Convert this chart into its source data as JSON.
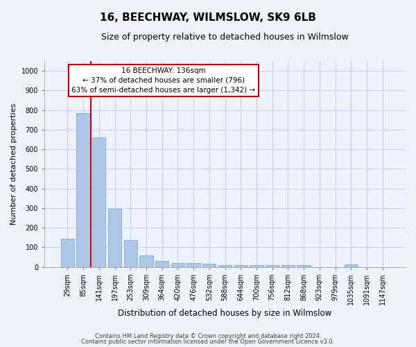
{
  "title": "16, BEECHWAY, WILMSLOW, SK9 6LB",
  "subtitle": "Size of property relative to detached houses in Wilmslow",
  "xlabel": "Distribution of detached houses by size in Wilmslow",
  "ylabel": "Number of detached properties",
  "bar_color": "#aec6e8",
  "bar_edge_color": "#7aafd4",
  "grid_color": "#c8d0e8",
  "annotation_line_color": "#cc0000",
  "annotation_box_color": "#cc0000",
  "annotation_text": "16 BEECHWAY: 136sqm\n← 37% of detached houses are smaller (796)\n63% of semi-detached houses are larger (1,342) →",
  "property_line_x": 1.5,
  "categories": [
    "29sqm",
    "85sqm",
    "141sqm",
    "197sqm",
    "253sqm",
    "309sqm",
    "364sqm",
    "420sqm",
    "476sqm",
    "532sqm",
    "588sqm",
    "644sqm",
    "700sqm",
    "756sqm",
    "812sqm",
    "868sqm",
    "923sqm",
    "979sqm",
    "1035sqm",
    "1091sqm",
    "1147sqm"
  ],
  "values": [
    143,
    783,
    660,
    295,
    138,
    57,
    30,
    20,
    20,
    15,
    8,
    8,
    8,
    10,
    10,
    8,
    0,
    0,
    12,
    0,
    0
  ],
  "ylim": [
    0,
    1050
  ],
  "yticks": [
    0,
    100,
    200,
    300,
    400,
    500,
    600,
    700,
    800,
    900,
    1000
  ],
  "footer1": "Contains HM Land Registry data © Crown copyright and database right 2024.",
  "footer2": "Contains public sector information licensed under the Open Government Licence v3.0.",
  "bg_color": "#eef2fb",
  "title_fontsize": 11,
  "subtitle_fontsize": 9,
  "tick_fontsize": 7,
  "ylabel_fontsize": 8,
  "xlabel_fontsize": 8.5,
  "footer_fontsize": 6,
  "annot_fontsize": 7.5
}
